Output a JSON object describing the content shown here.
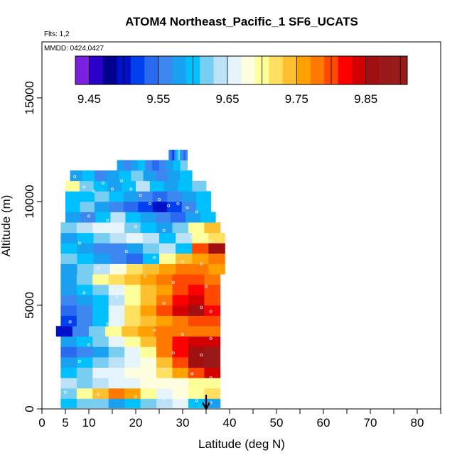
{
  "chart_data": {
    "type": "heatmap",
    "title": "ATOM4 Northeast_Pacific_1 SF6_UCATS",
    "subtitle_flights": "Flts: 1,2",
    "subtitle_dates": "MMDD: 0424,0427",
    "xlabel": "Latitude (deg N)",
    "ylabel": "Altitude (m)",
    "xlim": [
      0,
      85
    ],
    "ylim": [
      0,
      17700
    ],
    "x_ticks_major": [
      0,
      5,
      10,
      20,
      30,
      40,
      50,
      60,
      70,
      80
    ],
    "x_ticks_minor": [
      15,
      25,
      35,
      45,
      55,
      65,
      75,
      85
    ],
    "y_ticks": [
      0,
      5000,
      10000,
      15000
    ],
    "colorbar": {
      "tick_labels": [
        "9.45",
        "9.55",
        "9.65",
        "9.75",
        "9.85"
      ],
      "tick_values": [
        9.45,
        9.55,
        9.65,
        9.75,
        9.85
      ],
      "bin_edges": [
        9.43,
        9.45,
        9.47,
        9.49,
        9.51,
        9.53,
        9.55,
        9.57,
        9.59,
        9.61,
        9.63,
        9.65,
        9.67,
        9.69,
        9.71,
        9.73,
        9.75,
        9.77,
        9.79,
        9.81,
        9.83,
        9.85,
        9.87,
        9.89,
        9.91
      ],
      "colors": [
        "#7b1fe0",
        "#2a00c8",
        "#00008c",
        "#0010c8",
        "#0040ee",
        "#2a6af0",
        "#3c88f0",
        "#1aa0f0",
        "#00c0ff",
        "#78cef0",
        "#bce2f8",
        "#e6f4fc",
        "#ffffe0",
        "#ffff9a",
        "#ffe060",
        "#ffc030",
        "#ffa000",
        "#ff7800",
        "#ff4800",
        "#ff0000",
        "#d20000",
        "#a01010",
        "#9a1a1a",
        "#9a1a1a"
      ]
    },
    "annotation_arrow_lat": 35,
    "layers": [
      {
        "alt": 300,
        "lat": [
          4,
          38
        ],
        "values": [
          9.6,
          9.61,
          9.62,
          9.58,
          9.6,
          9.62,
          9.64,
          9.66,
          9.6,
          9.58
        ]
      },
      {
        "alt": 750,
        "lat": [
          4,
          38
        ],
        "values": [
          9.62,
          9.7,
          9.74,
          9.78,
          9.76,
          9.7,
          9.66,
          9.68,
          9.7,
          9.72
        ]
      },
      {
        "alt": 1250,
        "lat": [
          4,
          38
        ],
        "values": [
          9.64,
          9.62,
          9.64,
          9.66,
          9.66,
          9.68,
          9.67,
          9.68,
          9.7,
          9.7
        ]
      },
      {
        "alt": 1750,
        "lat": [
          4,
          38
        ],
        "values": [
          9.6,
          9.62,
          9.66,
          9.66,
          9.67,
          9.68,
          9.72,
          9.76,
          9.8,
          9.84
        ]
      },
      {
        "alt": 2250,
        "lat": [
          4,
          38
        ],
        "values": [
          9.58,
          9.6,
          9.62,
          9.64,
          9.66,
          9.68,
          9.74,
          9.8,
          9.86,
          9.88
        ]
      },
      {
        "alt": 2750,
        "lat": [
          4,
          38
        ],
        "values": [
          9.54,
          9.56,
          9.58,
          9.62,
          9.66,
          9.7,
          9.78,
          9.82,
          9.86,
          9.88
        ]
      },
      {
        "alt": 3250,
        "lat": [
          4,
          38
        ],
        "values": [
          9.58,
          9.6,
          9.62,
          9.66,
          9.7,
          9.74,
          9.78,
          9.82,
          9.84,
          9.84
        ]
      },
      {
        "alt": 3750,
        "lat": [
          3,
          38
        ],
        "values": [
          9.5,
          9.56,
          9.62,
          9.7,
          9.74,
          9.76,
          9.78,
          9.78,
          9.78,
          9.78
        ]
      },
      {
        "alt": 4250,
        "lat": [
          4,
          38
        ],
        "values": [
          9.52,
          9.56,
          9.6,
          9.66,
          9.72,
          9.74,
          9.76,
          9.78,
          9.8,
          9.8
        ]
      },
      {
        "alt": 4750,
        "lat": [
          4,
          38
        ],
        "values": [
          9.54,
          9.56,
          9.6,
          9.66,
          9.72,
          9.76,
          9.8,
          9.84,
          9.86,
          9.82
        ]
      },
      {
        "alt": 5250,
        "lat": [
          4,
          38
        ],
        "values": [
          9.56,
          9.58,
          9.6,
          9.64,
          9.7,
          9.74,
          9.78,
          9.82,
          9.84,
          9.8
        ]
      },
      {
        "alt": 5750,
        "lat": [
          4,
          38
        ],
        "values": [
          9.58,
          9.6,
          9.62,
          9.66,
          9.7,
          9.74,
          9.76,
          9.8,
          9.82,
          9.8
        ]
      },
      {
        "alt": 6250,
        "lat": [
          4,
          38
        ],
        "values": [
          9.58,
          9.62,
          9.7,
          9.72,
          9.74,
          9.76,
          9.78,
          9.8,
          9.8,
          9.78
        ]
      },
      {
        "alt": 6750,
        "lat": [
          4,
          39
        ],
        "values": [
          9.58,
          9.62,
          9.64,
          9.68,
          9.72,
          9.74,
          9.76,
          9.78,
          9.78,
          9.76
        ]
      },
      {
        "alt": 7250,
        "lat": [
          4,
          39
        ],
        "values": [
          9.62,
          9.6,
          9.58,
          9.56,
          9.54,
          9.6,
          9.7,
          9.74,
          9.76,
          9.78
        ]
      },
      {
        "alt": 7750,
        "lat": [
          4,
          39
        ],
        "values": [
          9.6,
          9.58,
          9.56,
          9.56,
          9.58,
          9.62,
          9.64,
          9.6,
          9.8,
          9.86
        ]
      },
      {
        "alt": 8250,
        "lat": [
          4,
          39
        ],
        "values": [
          9.58,
          9.6,
          9.62,
          9.64,
          9.66,
          9.64,
          9.6,
          9.64,
          9.7,
          9.72
        ]
      },
      {
        "alt": 8750,
        "lat": [
          4,
          38
        ],
        "values": [
          9.62,
          9.64,
          9.66,
          9.66,
          9.62,
          9.6,
          9.58,
          9.62,
          9.7,
          9.74
        ]
      },
      {
        "alt": 9250,
        "lat": [
          5,
          37
        ],
        "values": [
          9.58,
          9.56,
          9.6,
          9.64,
          9.6,
          9.58,
          9.56,
          9.54,
          9.58,
          9.6
        ]
      },
      {
        "alt": 9750,
        "lat": [
          5,
          36
        ],
        "values": [
          9.6,
          9.62,
          9.58,
          9.56,
          9.54,
          9.52,
          9.5,
          9.52,
          9.56,
          9.6
        ]
      },
      {
        "alt": 10250,
        "lat": [
          5,
          36
        ],
        "values": [
          9.6,
          9.6,
          9.62,
          9.6,
          9.58,
          9.56,
          9.54,
          9.56,
          9.58,
          9.6
        ]
      },
      {
        "alt": 10750,
        "lat": [
          5,
          35
        ],
        "values": [
          9.7,
          9.62,
          9.6,
          9.58,
          9.6,
          9.64,
          9.6,
          9.58,
          9.6,
          9.62
        ]
      },
      {
        "alt": 11250,
        "lat": [
          6,
          32
        ],
        "values": [
          9.58,
          9.6,
          9.56,
          9.58,
          9.6,
          9.62,
          9.58,
          9.56,
          9.58,
          9.6
        ]
      },
      {
        "alt": 11750,
        "lat": [
          16,
          31
        ],
        "values": [
          9.58,
          9.56,
          9.58,
          9.6,
          9.56,
          9.54,
          9.56,
          9.58,
          9.6,
          9.62
        ]
      },
      {
        "alt": 12250,
        "lat": [
          27,
          31
        ],
        "values": [
          9.56,
          9.54,
          9.52,
          9.56,
          9.6,
          9.62,
          9.58,
          9.56,
          9.54,
          9.56
        ]
      }
    ],
    "samples": [
      [
        5,
        11200
      ],
      [
        7,
        11200
      ],
      [
        9,
        10700
      ],
      [
        11,
        10500
      ],
      [
        13,
        10900
      ],
      [
        15,
        10600
      ],
      [
        17,
        11000
      ],
      [
        19,
        10600
      ],
      [
        21,
        10300
      ],
      [
        23,
        9900
      ],
      [
        25,
        10100
      ],
      [
        27,
        9800
      ],
      [
        29,
        9900
      ],
      [
        31,
        9700
      ],
      [
        33,
        9500
      ],
      [
        10,
        9300
      ],
      [
        14,
        9100
      ],
      [
        20,
        8800
      ],
      [
        26,
        8600
      ],
      [
        32,
        8300
      ],
      [
        34,
        8200
      ],
      [
        36,
        8100
      ],
      [
        8,
        8000
      ],
      [
        18,
        7600
      ],
      [
        24,
        7300
      ],
      [
        30,
        7100
      ],
      [
        34,
        7000
      ],
      [
        12,
        6800
      ],
      [
        22,
        6400
      ],
      [
        28,
        6100
      ],
      [
        35,
        5900
      ],
      [
        9,
        5600
      ],
      [
        16,
        5400
      ],
      [
        26,
        5100
      ],
      [
        34,
        4900
      ],
      [
        36,
        4700
      ],
      [
        6,
        4200
      ],
      [
        14,
        4100
      ],
      [
        24,
        3800
      ],
      [
        30,
        3600
      ],
      [
        36,
        3400
      ],
      [
        10,
        3100
      ],
      [
        20,
        2900
      ],
      [
        28,
        2700
      ],
      [
        34,
        2600
      ],
      [
        8,
        2300
      ],
      [
        18,
        2100
      ],
      [
        26,
        1900
      ],
      [
        32,
        1700
      ],
      [
        36,
        1500
      ],
      [
        5,
        800
      ],
      [
        12,
        700
      ],
      [
        20,
        600
      ],
      [
        26,
        500
      ],
      [
        33,
        400
      ],
      [
        36,
        300
      ]
    ]
  }
}
